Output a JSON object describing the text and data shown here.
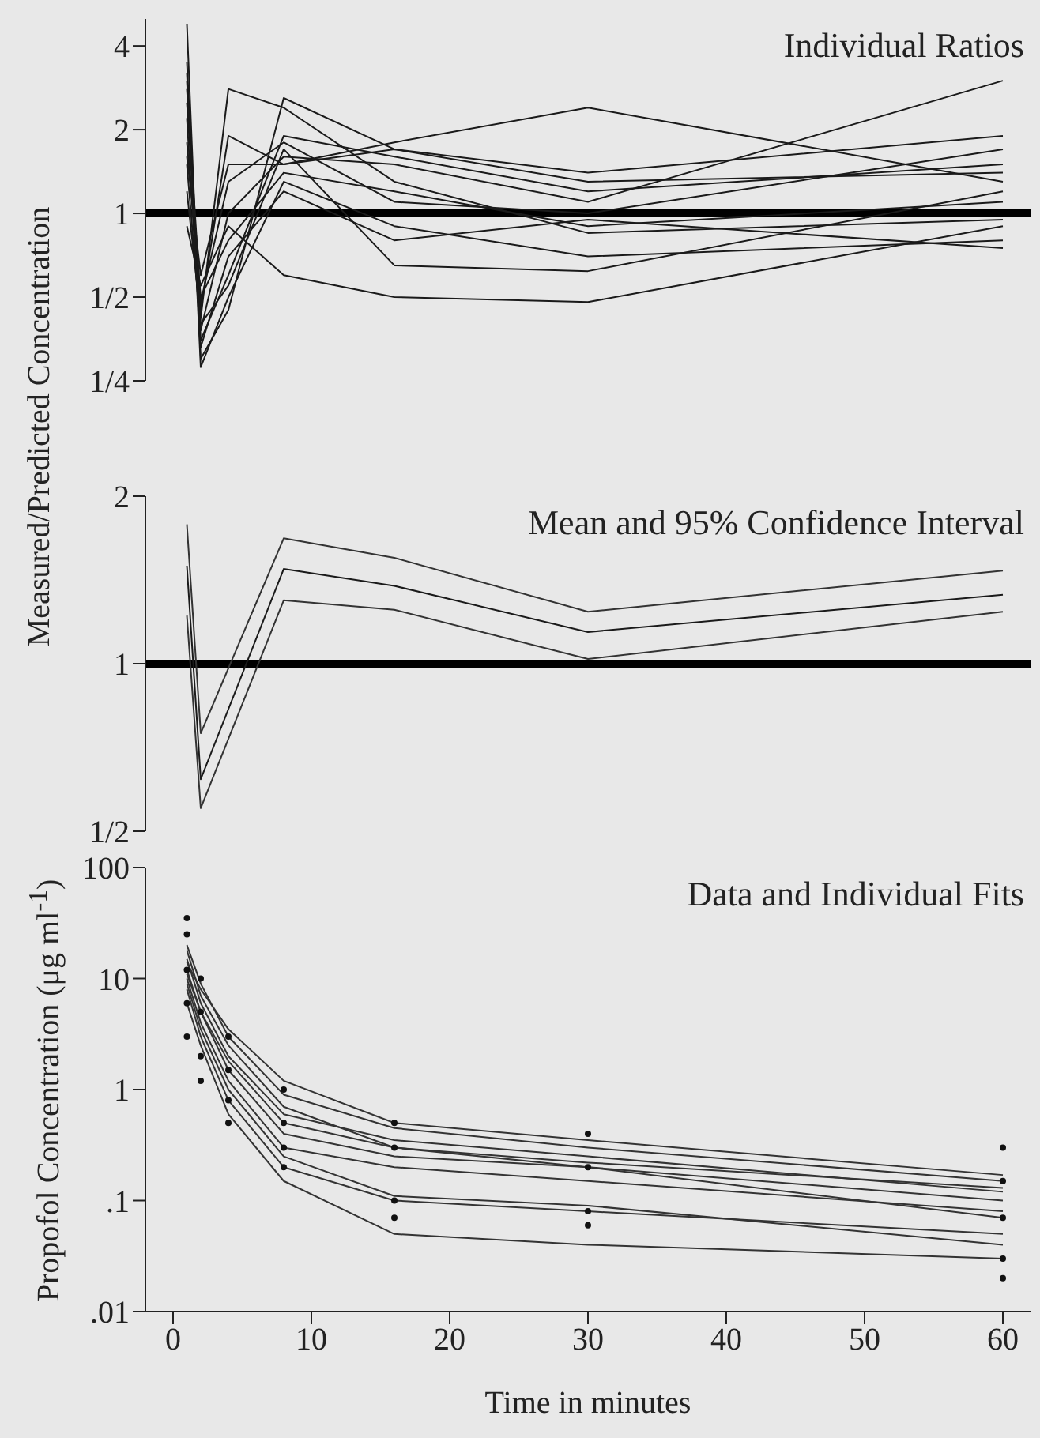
{
  "chart_data": [
    {
      "type": "line",
      "title": "Individual Ratios",
      "ylabel": "Measured/Predicted Concentration",
      "log": "y",
      "xlim": [
        -2,
        62
      ],
      "ylim": [
        0.25,
        5
      ],
      "yticks": [
        {
          "value": 0.25,
          "label": "1/4"
        },
        {
          "value": 0.5,
          "label": "1/2"
        },
        1,
        2,
        4
      ],
      "tick_labels": "y",
      "ref_lines": [
        {
          "axis": "y",
          "value": 1,
          "color": "#000000"
        }
      ],
      "x": [
        1,
        2,
        4,
        8,
        16,
        30,
        60
      ],
      "series": [
        {
          "color": "#1a1a1a",
          "values": [
            3.5,
            0.35,
            0.6,
            1.9,
            1.6,
            1.2,
            1.5
          ]
        },
        {
          "color": "#1a1a1a",
          "values": [
            4.8,
            0.3,
            0.45,
            2.6,
            1.7,
            1.3,
            1.4
          ]
        },
        {
          "color": "#1a1a1a",
          "values": [
            2.5,
            0.45,
            1.9,
            1.5,
            1.8,
            2.4,
            1.3
          ]
        },
        {
          "color": "#1a1a1a",
          "values": [
            1.8,
            0.5,
            0.8,
            1.4,
            1.2,
            0.9,
            1.1
          ]
        },
        {
          "color": "#1a1a1a",
          "values": [
            3.0,
            0.4,
            0.55,
            1.7,
            0.65,
            0.62,
            1.2
          ]
        },
        {
          "color": "#1a1a1a",
          "values": [
            1.2,
            0.42,
            2.8,
            2.4,
            1.3,
            0.85,
            0.95
          ]
        },
        {
          "color": "#1a1a1a",
          "values": [
            2.2,
            0.33,
            0.7,
            1.2,
            0.8,
            0.95,
            0.75
          ]
        },
        {
          "color": "#1a1a1a",
          "values": [
            0.9,
            0.55,
            0.9,
            0.6,
            0.5,
            0.48,
            0.9
          ]
        },
        {
          "color": "#1a1a1a",
          "values": [
            1.5,
            0.38,
            1.0,
            1.6,
            1.5,
            1.1,
            3.0
          ]
        },
        {
          "color": "#1a1a1a",
          "values": [
            2.8,
            0.48,
            1.3,
            1.8,
            1.1,
            1.0,
            1.7
          ]
        },
        {
          "color": "#1a1a1a",
          "values": [
            3.2,
            0.28,
            0.5,
            1.3,
            0.9,
            0.7,
            0.8
          ]
        },
        {
          "color": "#1a1a1a",
          "values": [
            1.6,
            0.6,
            1.5,
            1.5,
            1.7,
            1.4,
            1.9
          ]
        }
      ]
    },
    {
      "type": "line",
      "title": "Mean and 95% Confidence Interval",
      "log": "y",
      "xlim": [
        -2,
        62
      ],
      "ylim": [
        0.5,
        2
      ],
      "yticks": [
        {
          "value": 0.5,
          "label": "1/2"
        },
        1,
        2
      ],
      "tick_labels": "y",
      "ref_lines": [
        {
          "axis": "y",
          "value": 1,
          "color": "#000000"
        }
      ],
      "x": [
        1,
        2,
        8,
        16,
        30,
        60
      ],
      "series": [
        {
          "color": "#333333",
          "values": [
            1.78,
            0.75,
            1.68,
            1.55,
            1.24,
            1.47
          ]
        },
        {
          "color": "#1a1a1a",
          "values": [
            1.5,
            0.62,
            1.48,
            1.38,
            1.14,
            1.33
          ]
        },
        {
          "color": "#333333",
          "values": [
            1.22,
            0.55,
            1.3,
            1.25,
            1.02,
            1.24
          ]
        }
      ]
    },
    {
      "type": "line",
      "title": "Data and Individual Fits",
      "xlabel": "Time in minutes",
      "ylabel": "Propofol Concentration (μg ml$^{-1}$)",
      "log": "y",
      "xlim": [
        -2,
        62
      ],
      "ylim": [
        0.01,
        100
      ],
      "xticks": [
        0,
        10,
        20,
        30,
        40,
        50,
        60
      ],
      "yticks": [
        {
          "value": 0.01,
          "label": ".01"
        },
        {
          "value": 0.1,
          "label": ".1"
        },
        1,
        10,
        100
      ],
      "x": [
        1,
        2,
        4,
        8,
        16,
        30,
        60
      ],
      "series": [
        {
          "color": "#333333",
          "values": [
            20,
            9,
            3,
            0.9,
            0.45,
            0.3,
            0.15
          ]
        },
        {
          "color": "#333333",
          "values": [
            15,
            6,
            2,
            0.6,
            0.35,
            0.25,
            0.12
          ]
        },
        {
          "color": "#333333",
          "values": [
            12,
            5,
            1.5,
            0.4,
            0.25,
            0.2,
            0.1
          ]
        },
        {
          "color": "#333333",
          "values": [
            10,
            4,
            1.2,
            0.3,
            0.2,
            0.15,
            0.08
          ]
        },
        {
          "color": "#333333",
          "values": [
            8,
            3,
            0.8,
            0.2,
            0.1,
            0.08,
            0.05
          ]
        },
        {
          "color": "#333333",
          "values": [
            18,
            7,
            2.5,
            0.7,
            0.3,
            0.2,
            0.07
          ]
        },
        {
          "color": "#333333",
          "values": [
            6,
            2.5,
            0.6,
            0.15,
            0.05,
            0.04,
            0.03
          ]
        },
        {
          "color": "#333333",
          "values": [
            14,
            8,
            3.5,
            1.2,
            0.5,
            0.35,
            0.17
          ]
        },
        {
          "color": "#333333",
          "values": [
            9,
            3.5,
            1,
            0.25,
            0.11,
            0.09,
            0.04
          ]
        },
        {
          "color": "#333333",
          "values": [
            11,
            5,
            1.8,
            0.5,
            0.3,
            0.22,
            0.13
          ]
        },
        {
          "type": "scatter",
          "color": "#111111",
          "x": [
            1,
            1,
            1,
            1,
            1,
            2,
            2,
            2,
            2,
            4,
            4,
            4,
            4,
            8,
            8,
            8,
            8,
            16,
            16,
            16,
            16,
            30,
            30,
            30,
            30,
            60,
            60,
            60,
            60,
            60
          ],
          "values": [
            35,
            25,
            12,
            6,
            3,
            10,
            5,
            2,
            1.2,
            3,
            1.5,
            0.8,
            0.5,
            1,
            0.5,
            0.3,
            0.2,
            0.5,
            0.3,
            0.1,
            0.07,
            0.4,
            0.2,
            0.08,
            0.06,
            0.3,
            0.15,
            0.07,
            0.03,
            0.02
          ]
        }
      ]
    }
  ]
}
